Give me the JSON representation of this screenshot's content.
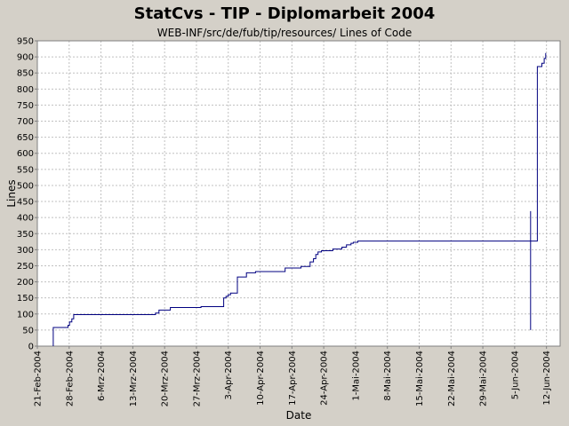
{
  "chart_data": {
    "type": "line",
    "title": "StatCvs - TIP - Diplomarbeit 2004",
    "subtitle": "WEB-INF/src/de/fub/tip/resources/ Lines of Code",
    "xlabel": "Date",
    "ylabel": "Lines",
    "xlim": [
      "2004-02-21",
      "2004-06-15"
    ],
    "ylim": [
      0,
      950
    ],
    "yticks": [
      0,
      50,
      100,
      150,
      200,
      250,
      300,
      350,
      400,
      450,
      500,
      550,
      600,
      650,
      700,
      750,
      800,
      850,
      900,
      950
    ],
    "xticks": [
      {
        "date": "2004-02-21",
        "label": "21-Feb-2004"
      },
      {
        "date": "2004-02-28",
        "label": "28-Feb-2004"
      },
      {
        "date": "2004-03-06",
        "label": "6-Mrz-2004"
      },
      {
        "date": "2004-03-13",
        "label": "13-Mrz-2004"
      },
      {
        "date": "2004-03-20",
        "label": "20-Mrz-2004"
      },
      {
        "date": "2004-03-27",
        "label": "27-Mrz-2004"
      },
      {
        "date": "2004-04-03",
        "label": "3-Apr-2004"
      },
      {
        "date": "2004-04-10",
        "label": "10-Apr-2004"
      },
      {
        "date": "2004-04-17",
        "label": "17-Apr-2004"
      },
      {
        "date": "2004-04-24",
        "label": "24-Apr-2004"
      },
      {
        "date": "2004-05-01",
        "label": "1-Mai-2004"
      },
      {
        "date": "2004-05-08",
        "label": "8-Mai-2004"
      },
      {
        "date": "2004-05-15",
        "label": "15-Mai-2004"
      },
      {
        "date": "2004-05-22",
        "label": "22-Mai-2004"
      },
      {
        "date": "2004-05-29",
        "label": "29-Mai-2004"
      },
      {
        "date": "2004-06-05",
        "label": "5-Jun-2004"
      },
      {
        "date": "2004-06-12",
        "label": "12-Jun-2004"
      }
    ],
    "grid": true,
    "step": true,
    "series": [
      {
        "color": "#000080",
        "points": [
          [
            "2004-02-24 12:00",
            0
          ],
          [
            "2004-02-24 12:00",
            58
          ],
          [
            "2004-02-27 18:00",
            58
          ],
          [
            "2004-02-27 18:00",
            65
          ],
          [
            "2004-02-28 02:00",
            65
          ],
          [
            "2004-02-28 02:00",
            75
          ],
          [
            "2004-02-28 14:00",
            75
          ],
          [
            "2004-02-28 14:00",
            85
          ],
          [
            "2004-02-29 00:00",
            85
          ],
          [
            "2004-02-29 00:00",
            98
          ],
          [
            "2004-03-18 00:00",
            98
          ],
          [
            "2004-03-18 00:00",
            103
          ],
          [
            "2004-03-18 18:00",
            103
          ],
          [
            "2004-03-18 18:00",
            112
          ],
          [
            "2004-03-21 06:00",
            112
          ],
          [
            "2004-03-21 06:00",
            120
          ],
          [
            "2004-03-28 00:00",
            120
          ],
          [
            "2004-03-28 00:00",
            123
          ],
          [
            "2004-04-02 00:00",
            123
          ],
          [
            "2004-04-02 00:00",
            150
          ],
          [
            "2004-04-02 12:00",
            150
          ],
          [
            "2004-04-02 12:00",
            155
          ],
          [
            "2004-04-03 00:00",
            155
          ],
          [
            "2004-04-03 00:00",
            160
          ],
          [
            "2004-04-03 12:00",
            160
          ],
          [
            "2004-04-03 12:00",
            165
          ],
          [
            "2004-04-05 00:00",
            165
          ],
          [
            "2004-04-05 00:00",
            215
          ],
          [
            "2004-04-07 00:00",
            215
          ],
          [
            "2004-04-07 00:00",
            228
          ],
          [
            "2004-04-09 00:00",
            228
          ],
          [
            "2004-04-09 00:00",
            232
          ],
          [
            "2004-04-15 12:00",
            232
          ],
          [
            "2004-04-15 12:00",
            243
          ],
          [
            "2004-04-19 00:00",
            243
          ],
          [
            "2004-04-19 00:00",
            248
          ],
          [
            "2004-04-21 00:00",
            248
          ],
          [
            "2004-04-21 00:00",
            262
          ],
          [
            "2004-04-21 18:00",
            262
          ],
          [
            "2004-04-21 18:00",
            272
          ],
          [
            "2004-04-22 06:00",
            272
          ],
          [
            "2004-04-22 06:00",
            285
          ],
          [
            "2004-04-22 18:00",
            285
          ],
          [
            "2004-04-22 18:00",
            293
          ],
          [
            "2004-04-23 12:00",
            293
          ],
          [
            "2004-04-23 12:00",
            297
          ],
          [
            "2004-04-26 00:00",
            297
          ],
          [
            "2004-04-26 00:00",
            302
          ],
          [
            "2004-04-28 00:00",
            302
          ],
          [
            "2004-04-28 00:00",
            308
          ],
          [
            "2004-04-29 00:00",
            308
          ],
          [
            "2004-04-29 00:00",
            315
          ],
          [
            "2004-04-30 00:00",
            315
          ],
          [
            "2004-04-30 00:00",
            320
          ],
          [
            "2004-04-30 12:00",
            320
          ],
          [
            "2004-04-30 12:00",
            323
          ],
          [
            "2004-05-01 12:00",
            323
          ],
          [
            "2004-05-01 12:00",
            327
          ],
          [
            "2004-06-08 12:00",
            327
          ],
          [
            "2004-06-08 12:00",
            420
          ],
          [
            "2004-06-08 12:00",
            50
          ],
          [
            "2004-06-08 12:00",
            327
          ],
          [
            "2004-06-10 00:00",
            327
          ],
          [
            "2004-06-10 00:00",
            870
          ],
          [
            "2004-06-11 00:00",
            870
          ],
          [
            "2004-06-11 00:00",
            880
          ],
          [
            "2004-06-11 12:00",
            880
          ],
          [
            "2004-06-11 12:00",
            895
          ],
          [
            "2004-06-11 20:00",
            895
          ],
          [
            "2004-06-11 20:00",
            912
          ]
        ]
      }
    ]
  }
}
